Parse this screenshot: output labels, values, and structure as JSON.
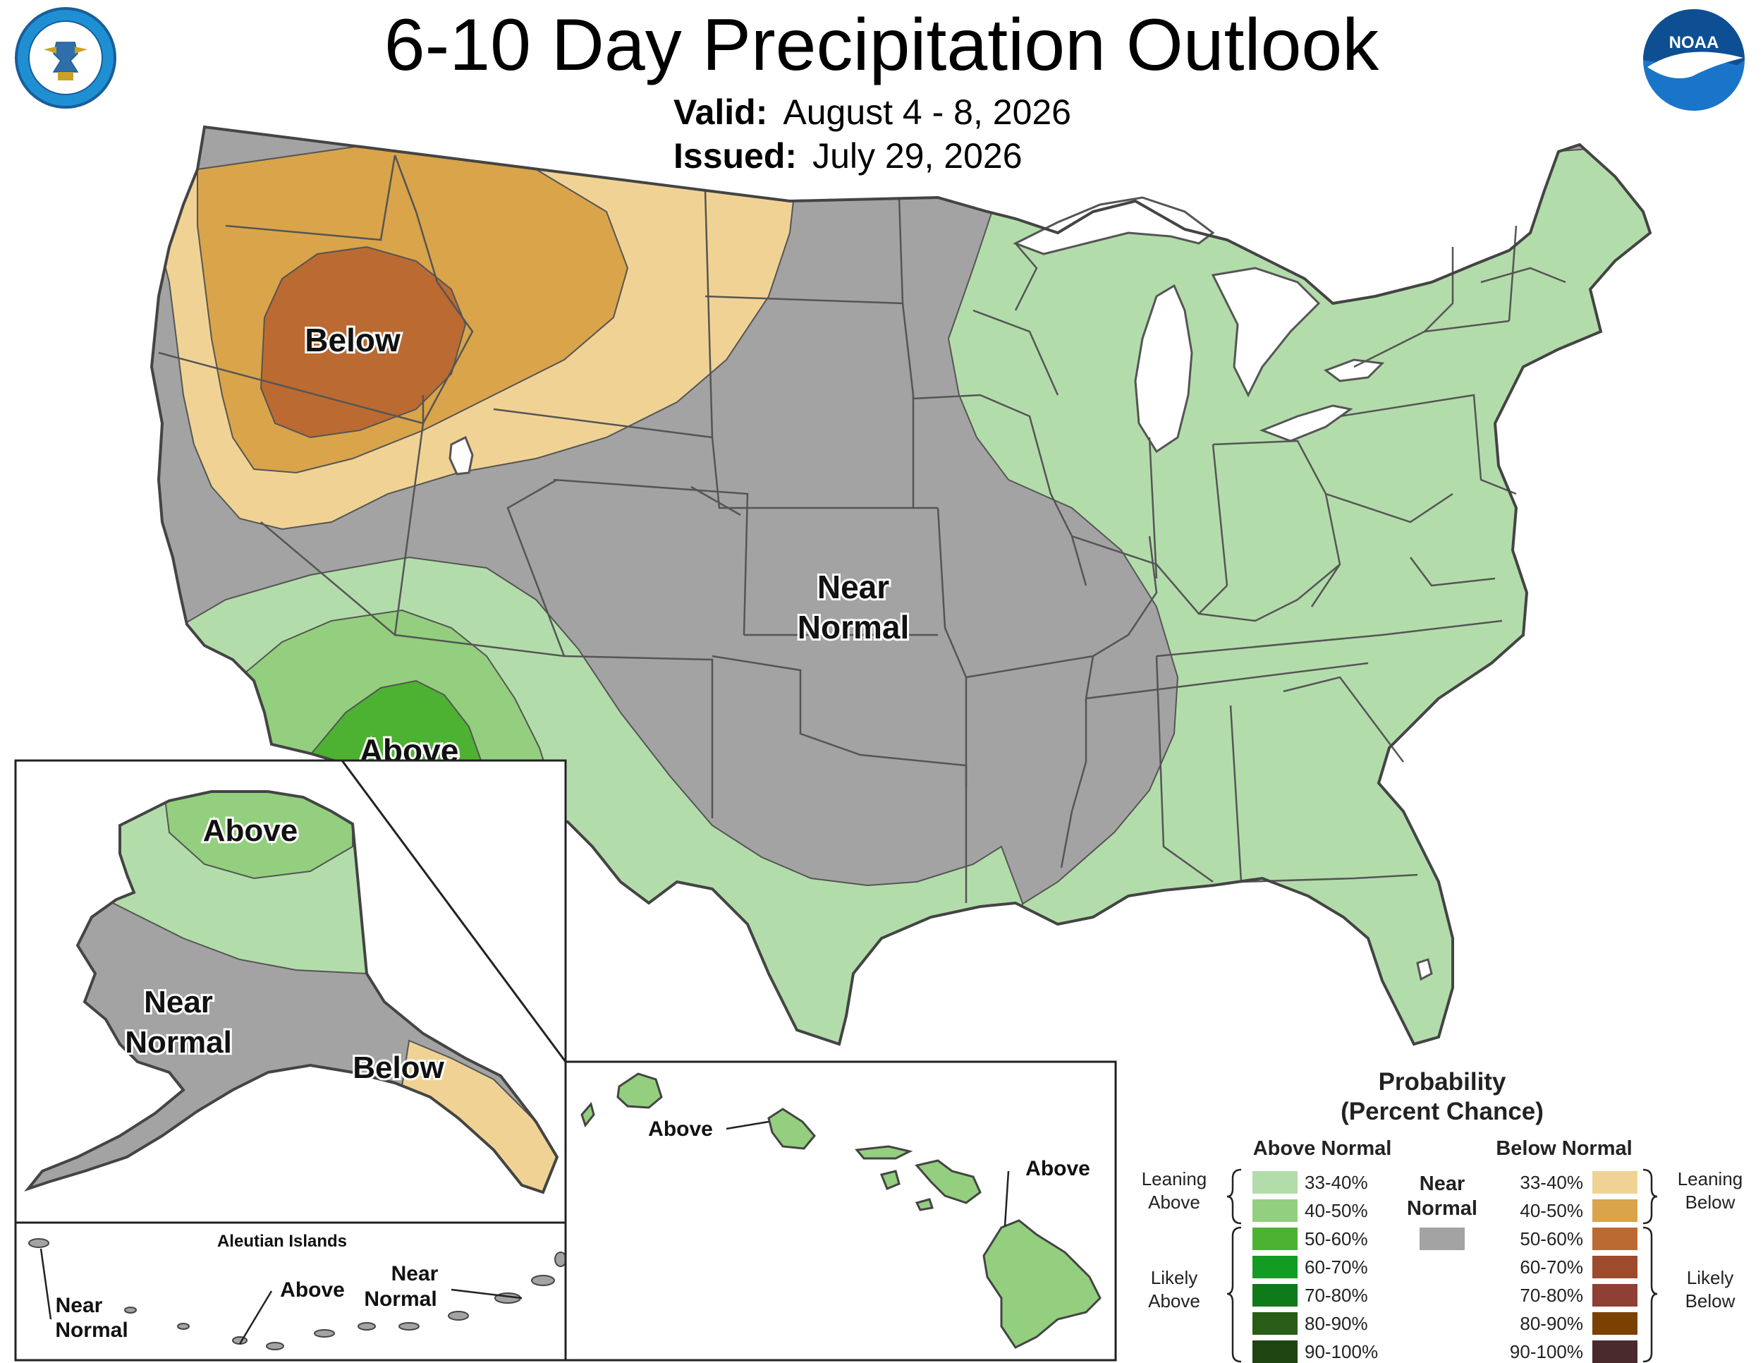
{
  "header": {
    "title": "6-10 Day Precipitation Outlook",
    "valid_label": "Valid:",
    "valid_value": "August 4 - 8, 2026",
    "issued_label": "Issued:",
    "issued_value": "July 29, 2026"
  },
  "logos": {
    "commerce_seal": "DEPARTMENT OF COMMERCE · UNITED STATES OF AMERICA",
    "noaa": "NOAA"
  },
  "map_labels": {
    "conus_below": "Below",
    "conus_near_line1": "Near",
    "conus_near_line2": "Normal",
    "conus_above": "Above",
    "ak_above": "Above",
    "ak_near_line1": "Near",
    "ak_near_line2": "Normal",
    "ak_below": "Below",
    "aleutian_title": "Aleutian Islands",
    "aleutian_near1_line1": "Near",
    "aleutian_near1_line2": "Normal",
    "aleutian_above": "Above",
    "aleutian_near2_line1": "Near",
    "aleutian_near2_line2": "Normal",
    "hi_above_left": "Above",
    "hi_above_right": "Above"
  },
  "legend": {
    "title_line1": "Probability",
    "title_line2": "(Percent Chance)",
    "above_header": "Above Normal",
    "below_header": "Below Normal",
    "near_line1": "Near",
    "near_line2": "Normal",
    "leaning_above_line1": "Leaning",
    "leaning_above_line2": "Above",
    "likely_above_line1": "Likely",
    "likely_above_line2": "Above",
    "leaning_below_line1": "Leaning",
    "leaning_below_line2": "Below",
    "likely_below_line1": "Likely",
    "likely_below_line2": "Below",
    "above_bins": [
      {
        "label": "33-40%",
        "color": "#b3dcab"
      },
      {
        "label": "40-50%",
        "color": "#93cf7e"
      },
      {
        "label": "50-60%",
        "color": "#4db232"
      },
      {
        "label": "60-70%",
        "color": "#149b24"
      },
      {
        "label": "70-80%",
        "color": "#0e7a1a"
      },
      {
        "label": "80-90%",
        "color": "#285c17"
      },
      {
        "label": "90-100%",
        "color": "#1e4411"
      }
    ],
    "below_bins": [
      {
        "label": "33-40%",
        "color": "#f0d394"
      },
      {
        "label": "40-50%",
        "color": "#d9a44a"
      },
      {
        "label": "50-60%",
        "color": "#bb6a32"
      },
      {
        "label": "60-70%",
        "color": "#9e4a2c"
      },
      {
        "label": "70-80%",
        "color": "#8f3f34"
      },
      {
        "label": "80-90%",
        "color": "#7b4103"
      },
      {
        "label": "90-100%",
        "color": "#4a2a2c"
      }
    ],
    "near_color": "#a3a3a3"
  }
}
